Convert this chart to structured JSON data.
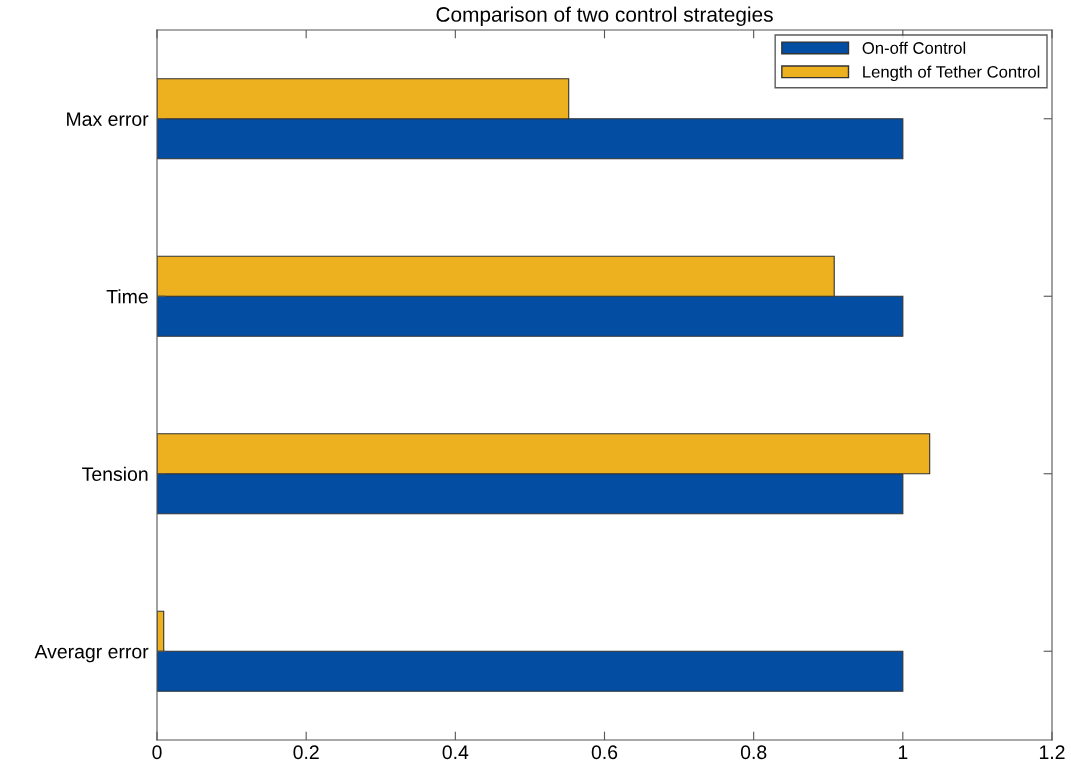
{
  "chart_data": {
    "type": "bar",
    "orientation": "horizontal",
    "title": "Comparison of two control strategies",
    "categories": [
      "Max error",
      "Time",
      "Tension",
      "Averagr error"
    ],
    "series": [
      {
        "name": "On-off Control",
        "color": "#034ea2",
        "values": [
          1,
          1,
          1,
          1
        ]
      },
      {
        "name": "Length of Tether Control",
        "color": "#edb120",
        "values": [
          0.552,
          0.908,
          1.036,
          0.009
        ]
      }
    ],
    "xlim": [
      0,
      1.2
    ],
    "xticks": [
      0,
      0.2,
      0.4,
      0.6,
      0.8,
      1,
      1.2
    ],
    "grid": false,
    "legend": "top right"
  }
}
